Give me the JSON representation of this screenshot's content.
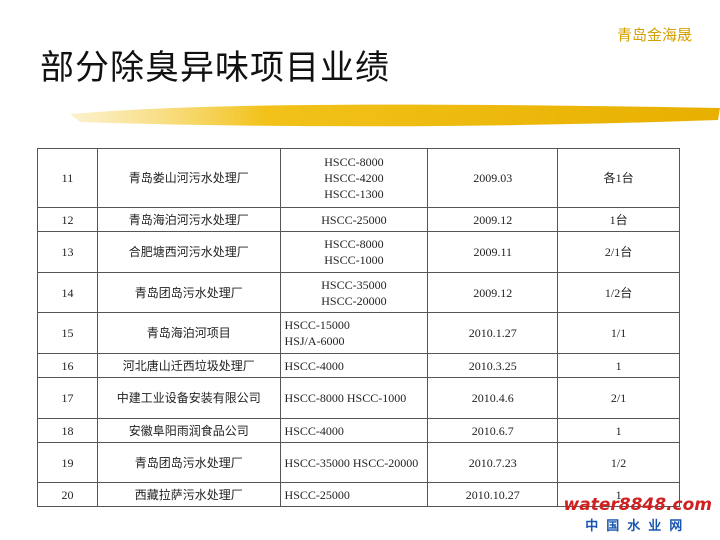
{
  "header": {
    "brand": "青岛金海晟",
    "title": "部分除臭异味项目业绩"
  },
  "table": {
    "rows": [
      [
        "11",
        "青岛娄山河污水处理厂",
        [
          "HSCC-8000",
          "HSCC-4200",
          "HSCC-1300"
        ],
        "2009.03",
        "各1台"
      ],
      [
        "12",
        "青岛海泊河污水处理厂",
        [
          "HSCC-25000"
        ],
        "2009.12",
        "1台"
      ],
      [
        "13",
        "合肥塘西河污水处理厂",
        [
          "HSCC-8000",
          "HSCC-1000"
        ],
        "2009.11",
        "2/1台"
      ],
      [
        "14",
        "青岛团岛污水处理厂",
        [
          "HSCC-35000",
          "HSCC-20000"
        ],
        "2009.12",
        "1/2台"
      ],
      [
        "15",
        "青岛海泊河项目",
        [
          "HSCC-15000",
          "HSJ/A-6000"
        ],
        "2010.1.27",
        "1/1"
      ],
      [
        "16",
        "河北唐山迁西垃圾处理厂",
        [
          "HSCC-4000"
        ],
        "2010.3.25",
        "1"
      ],
      [
        "17",
        "中建工业设备安装有限公司",
        [
          "HSCC-8000 HSCC-1000"
        ],
        "2010.4.6",
        "2/1"
      ],
      [
        "18",
        "安徽阜阳雨润食品公司",
        [
          "HSCC-4000"
        ],
        "2010.6.7",
        "1"
      ],
      [
        "19",
        "青岛团岛污水处理厂",
        [
          "HSCC-35000 HSCC-20000"
        ],
        "2010.7.23",
        "1/2"
      ],
      [
        "20",
        "西藏拉萨污水处理厂",
        [
          "HSCC-25000"
        ],
        "2010.10.27",
        "1"
      ]
    ]
  },
  "watermark": {
    "site": "water8848.com",
    "name": "中国水业网"
  }
}
